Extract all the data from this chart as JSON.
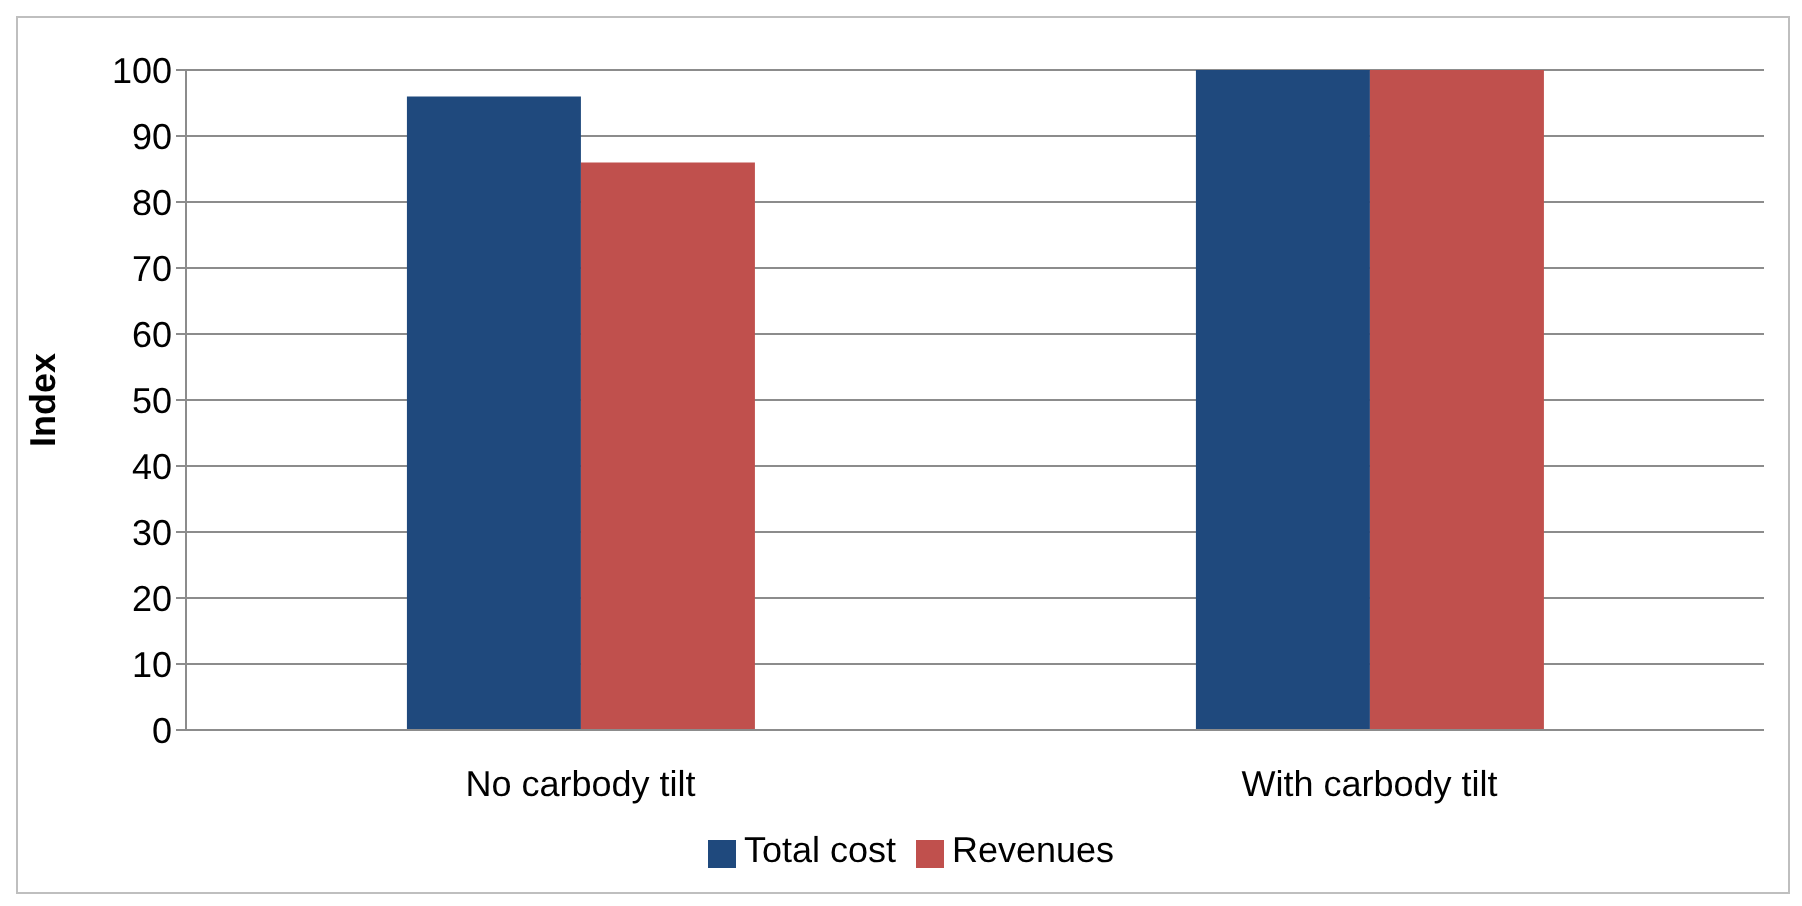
{
  "chart_data": {
    "type": "bar",
    "categories": [
      "No carbody tilt",
      "With carbody tilt"
    ],
    "series": [
      {
        "name": "Total cost",
        "color": "#1f497d",
        "values": [
          96,
          100
        ]
      },
      {
        "name": "Revenues",
        "color": "#c0504d",
        "values": [
          86,
          100
        ]
      }
    ],
    "ylabel": "Index",
    "ylim": [
      0,
      100
    ],
    "yticks": [
      0,
      10,
      20,
      30,
      40,
      50,
      60,
      70,
      80,
      90,
      100
    ],
    "grid": "y",
    "legend": "bottom"
  }
}
